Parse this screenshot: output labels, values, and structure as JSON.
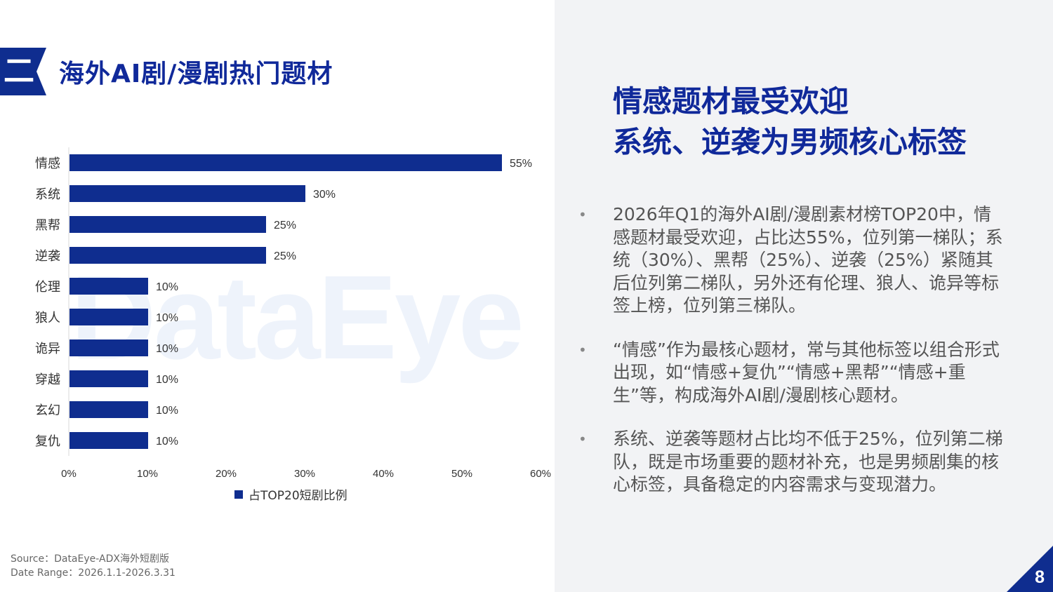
{
  "section": {
    "number": "二",
    "title": "海外AI剧/漫剧热门题材"
  },
  "watermark": "DataEye",
  "chart_data": {
    "type": "bar",
    "orientation": "horizontal",
    "categories": [
      "情感",
      "系统",
      "黑帮",
      "逆袭",
      "伦理",
      "狼人",
      "诡异",
      "穿越",
      "玄幻",
      "复仇"
    ],
    "series": [
      {
        "name": "占TOP20短剧比例",
        "values": [
          55,
          30,
          25,
          25,
          10,
          10,
          10,
          10,
          10,
          10
        ],
        "color": "#0f2d8f"
      }
    ],
    "data_labels": [
      "55%",
      "30%",
      "25%",
      "25%",
      "10%",
      "10%",
      "10%",
      "10%",
      "10%",
      "10%"
    ],
    "x_ticks": [
      "0%",
      "10%",
      "20%",
      "30%",
      "40%",
      "50%",
      "60%"
    ],
    "xlim": [
      0,
      60
    ],
    "grid": false,
    "legend": "bottom"
  },
  "source": {
    "line1": "Source：DataEye-ADX海外短剧版",
    "line2": "Date Range：2026.1.1-2026.3.31"
  },
  "headline": {
    "line1": "情感题材最受欢迎",
    "line2": "系统、逆袭为男频核心标签"
  },
  "bullets": [
    "2026年Q1的海外AI剧/漫剧素材榜TOP20中，情感题材最受欢迎，占比达55%，位列第一梯队；系统（30%）、黑帮（25%）、逆袭（25%）紧随其后位列第二梯队，另外还有伦理、狼人、诡异等标签上榜，位列第三梯队。",
    "“情感”作为最核心题材，常与其他标签以组合形式出现，如“情感+复仇”“情感+黑帮”“情感+重生”等，构成海外AI剧/漫剧核心题材。",
    "系统、逆袭等题材占比均不低于25%，位列第二梯队，既是市场重要的题材补充，也是男频剧集的核心标签，具备稳定的内容需求与变现潜力。"
  ],
  "page_number": "8",
  "colors": {
    "brand": "#0f2d8f",
    "title": "#10299a",
    "panel_bg": "#f2f3f5"
  }
}
